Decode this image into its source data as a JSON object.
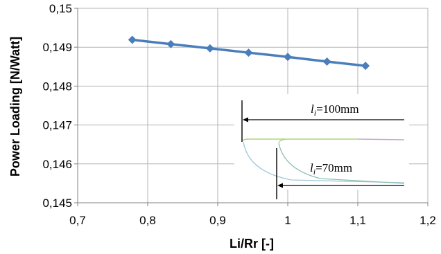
{
  "chart_data": {
    "type": "line",
    "xlabel": "Li/Rr [-]",
    "ylabel": "Power Loading [N/Watt]",
    "xlim": [
      0.7,
      1.2
    ],
    "ylim": [
      0.145,
      0.15
    ],
    "x_ticks": [
      "0,7",
      "0,8",
      "0,9",
      "1",
      "1,1",
      "1,2"
    ],
    "y_ticks": [
      "0,145",
      "0,146",
      "0,147",
      "0,148",
      "0,149",
      "0,15"
    ],
    "grid": "horizontal and vertical",
    "series": [
      {
        "color": "#4a7ebb",
        "marker": "diamond",
        "x": [
          0.778,
          0.833,
          0.889,
          0.944,
          1.0,
          1.056,
          1.111
        ],
        "y": [
          0.14919,
          0.14908,
          0.14897,
          0.14886,
          0.14875,
          0.14863,
          0.14852
        ]
      }
    ],
    "annotations": {
      "inset_label_1": {
        "var": "l",
        "sub": "i",
        "text": "=100mm"
      },
      "inset_label_2": {
        "var": "l",
        "sub": "i",
        "text": "=70mm"
      }
    }
  }
}
